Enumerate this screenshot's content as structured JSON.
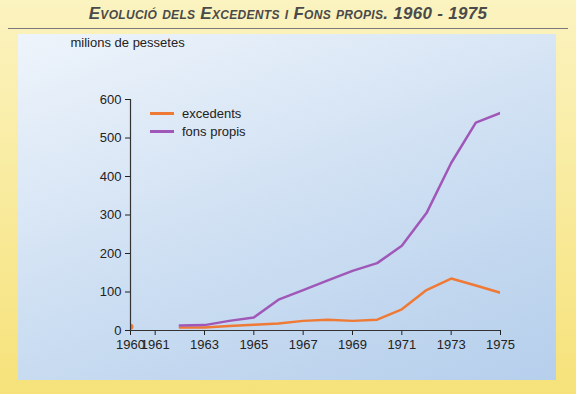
{
  "chart_data": {
    "type": "line",
    "title": "Evolució dels Excedents i Fons propis. 1960 - 1975",
    "y_label": "milions de pessetes",
    "x": [
      1960,
      1961,
      1962,
      1963,
      1964,
      1965,
      1966,
      1967,
      1968,
      1969,
      1970,
      1971,
      1972,
      1973,
      1974,
      1975
    ],
    "series": [
      {
        "name": "excedents",
        "color": "#ef7a35",
        "values": [
          10,
          null,
          8,
          8,
          12,
          15,
          18,
          25,
          28,
          25,
          28,
          55,
          105,
          135,
          117,
          98
        ]
      },
      {
        "name": "fons propis",
        "color": "#a058b8",
        "values": [
          null,
          null,
          13,
          14,
          25,
          34,
          80,
          105,
          130,
          155,
          175,
          220,
          305,
          435,
          540,
          565
        ]
      }
    ],
    "xlim": [
      1960,
      1975
    ],
    "xticks": [
      1960,
      1961,
      1963,
      1965,
      1967,
      1969,
      1971,
      1973,
      1975
    ],
    "ylim": [
      0,
      600
    ],
    "yticks": [
      0,
      100,
      200,
      300,
      400,
      500,
      600
    ],
    "grid": false,
    "legend": "top-left"
  }
}
